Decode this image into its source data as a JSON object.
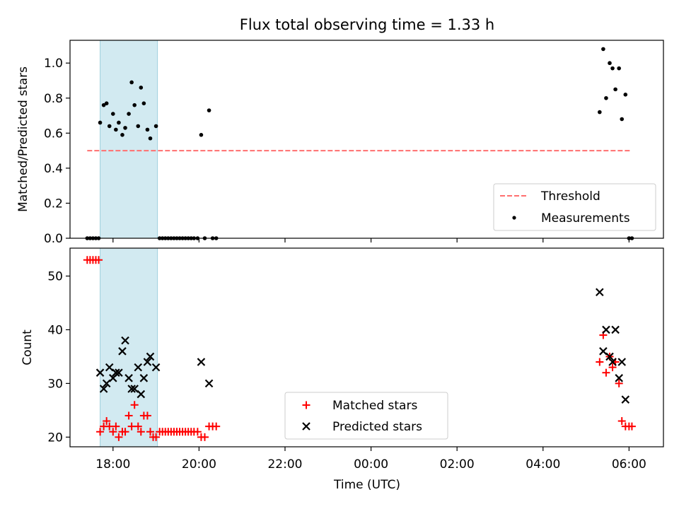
{
  "title": "Flux total observing time = 1.33 h",
  "colors": {
    "threshold": "#ff6f6f",
    "measurements": "#000000",
    "matched": "#ff0000",
    "predicted": "#000000",
    "span": "#add8e6"
  },
  "chart_data": [
    {
      "type": "scatter",
      "ylabel": "Matched/Predicted stars",
      "xlim": [
        17.0,
        6.8
      ],
      "xlim_note": "x in hours UTC, axis runs from 17:00 through midnight to 06:48 (value wraps; 0..6.8 means next day)",
      "ylim": [
        0.0,
        1.13
      ],
      "yticks": [
        "0.0",
        "0.2",
        "0.4",
        "0.6",
        "0.8",
        "1.0"
      ],
      "ytick_values": [
        0.0,
        0.2,
        0.4,
        0.6,
        0.8,
        1.0
      ],
      "highlight_span": {
        "x_start": "17:42",
        "x_end": "19:02"
      },
      "legend": {
        "placement": "lower right",
        "entries": [
          "Threshold",
          "Measurements"
        ]
      },
      "series": [
        {
          "name": "Threshold",
          "style": "dashed-line",
          "points": [
            [
              "17:24",
              0.5
            ],
            [
              "06:03",
              0.5
            ]
          ]
        },
        {
          "name": "Measurements",
          "style": "dot",
          "points": [
            [
              "17:24",
              0.0
            ],
            [
              "17:28",
              0.0
            ],
            [
              "17:32",
              0.0
            ],
            [
              "17:36",
              0.0
            ],
            [
              "17:40",
              0.0
            ],
            [
              "17:42",
              0.66
            ],
            [
              "17:47",
              0.76
            ],
            [
              "17:51",
              0.77
            ],
            [
              "17:55",
              0.64
            ],
            [
              "18:00",
              0.71
            ],
            [
              "18:04",
              0.62
            ],
            [
              "18:08",
              0.66
            ],
            [
              "18:13",
              0.59
            ],
            [
              "18:17",
              0.63
            ],
            [
              "18:22",
              0.71
            ],
            [
              "18:26",
              0.89
            ],
            [
              "18:30",
              0.76
            ],
            [
              "18:35",
              0.64
            ],
            [
              "18:39",
              0.86
            ],
            [
              "18:43",
              0.77
            ],
            [
              "18:48",
              0.62
            ],
            [
              "18:52",
              0.57
            ],
            [
              "19:00",
              0.64
            ],
            [
              "19:05",
              0.0
            ],
            [
              "19:09",
              0.0
            ],
            [
              "19:13",
              0.0
            ],
            [
              "19:17",
              0.0
            ],
            [
              "19:21",
              0.0
            ],
            [
              "19:25",
              0.0
            ],
            [
              "19:29",
              0.0
            ],
            [
              "19:33",
              0.0
            ],
            [
              "19:37",
              0.0
            ],
            [
              "19:41",
              0.0
            ],
            [
              "19:45",
              0.0
            ],
            [
              "19:49",
              0.0
            ],
            [
              "19:53",
              0.0
            ],
            [
              "19:58",
              0.0
            ],
            [
              "20:03",
              0.59
            ],
            [
              "20:08",
              0.0
            ],
            [
              "20:14",
              0.73
            ],
            [
              "20:19",
              0.0
            ],
            [
              "20:24",
              0.0
            ],
            [
              "05:19",
              0.72
            ],
            [
              "05:24",
              1.08
            ],
            [
              "05:28",
              0.8
            ],
            [
              "05:33",
              1.0
            ],
            [
              "05:37",
              0.97
            ],
            [
              "05:41",
              0.85
            ],
            [
              "05:46",
              0.97
            ],
            [
              "05:50",
              0.68
            ],
            [
              "05:55",
              0.82
            ],
            [
              "06:00",
              0.0
            ],
            [
              "06:04",
              0.0
            ]
          ]
        }
      ]
    },
    {
      "type": "scatter",
      "xlabel": "Time (UTC)",
      "ylabel": "Count",
      "xticks": [
        "18:00",
        "20:00",
        "22:00",
        "00:00",
        "02:00",
        "04:00",
        "06:00"
      ],
      "ylim": [
        18.2,
        55.2
      ],
      "yticks": [
        "20",
        "30",
        "40",
        "50"
      ],
      "ytick_values": [
        20,
        30,
        40,
        50
      ],
      "highlight_span": {
        "x_start": "17:42",
        "x_end": "19:02"
      },
      "legend": {
        "placement": "lower center",
        "entries": [
          "Matched stars",
          "Predicted stars"
        ]
      },
      "series": [
        {
          "name": "Matched stars",
          "marker": "plus",
          "points": [
            [
              "17:24",
              53
            ],
            [
              "17:28",
              53
            ],
            [
              "17:32",
              53
            ],
            [
              "17:36",
              53
            ],
            [
              "17:40",
              53
            ],
            [
              "17:42",
              21
            ],
            [
              "17:47",
              22
            ],
            [
              "17:51",
              23
            ],
            [
              "17:55",
              22
            ],
            [
              "18:00",
              21
            ],
            [
              "18:04",
              22
            ],
            [
              "18:08",
              20
            ],
            [
              "18:13",
              21
            ],
            [
              "18:17",
              21
            ],
            [
              "18:22",
              24
            ],
            [
              "18:26",
              22
            ],
            [
              "18:30",
              26
            ],
            [
              "18:35",
              22
            ],
            [
              "18:39",
              21
            ],
            [
              "18:43",
              24
            ],
            [
              "18:48",
              24
            ],
            [
              "18:52",
              21
            ],
            [
              "18:56",
              20
            ],
            [
              "19:00",
              20
            ],
            [
              "19:05",
              21
            ],
            [
              "19:09",
              21
            ],
            [
              "19:13",
              21
            ],
            [
              "19:17",
              21
            ],
            [
              "19:21",
              21
            ],
            [
              "19:25",
              21
            ],
            [
              "19:29",
              21
            ],
            [
              "19:33",
              21
            ],
            [
              "19:37",
              21
            ],
            [
              "19:41",
              21
            ],
            [
              "19:45",
              21
            ],
            [
              "19:49",
              21
            ],
            [
              "19:53",
              21
            ],
            [
              "19:58",
              21
            ],
            [
              "20:03",
              20
            ],
            [
              "20:08",
              20
            ],
            [
              "20:14",
              22
            ],
            [
              "20:19",
              22
            ],
            [
              "20:24",
              22
            ],
            [
              "05:19",
              34
            ],
            [
              "05:24",
              39
            ],
            [
              "05:28",
              32
            ],
            [
              "05:33",
              35
            ],
            [
              "05:37",
              33
            ],
            [
              "05:41",
              34
            ],
            [
              "05:46",
              30
            ],
            [
              "05:50",
              23
            ],
            [
              "05:55",
              22
            ],
            [
              "06:00",
              22
            ],
            [
              "06:04",
              22
            ]
          ]
        },
        {
          "name": "Predicted stars",
          "marker": "x",
          "points": [
            [
              "17:42",
              32
            ],
            [
              "17:47",
              29
            ],
            [
              "17:51",
              30
            ],
            [
              "17:55",
              33
            ],
            [
              "18:00",
              31
            ],
            [
              "18:04",
              32
            ],
            [
              "18:08",
              32
            ],
            [
              "18:13",
              36
            ],
            [
              "18:17",
              38
            ],
            [
              "18:22",
              31
            ],
            [
              "18:26",
              29
            ],
            [
              "18:30",
              29
            ],
            [
              "18:35",
              33
            ],
            [
              "18:39",
              28
            ],
            [
              "18:43",
              31
            ],
            [
              "18:48",
              34
            ],
            [
              "18:52",
              35
            ],
            [
              "19:00",
              33
            ],
            [
              "20:03",
              34
            ],
            [
              "20:14",
              30
            ],
            [
              "05:19",
              47
            ],
            [
              "05:24",
              36
            ],
            [
              "05:28",
              40
            ],
            [
              "05:33",
              35
            ],
            [
              "05:37",
              34
            ],
            [
              "05:41",
              40
            ],
            [
              "05:46",
              31
            ],
            [
              "05:50",
              34
            ],
            [
              "05:55",
              27
            ]
          ]
        }
      ]
    }
  ]
}
